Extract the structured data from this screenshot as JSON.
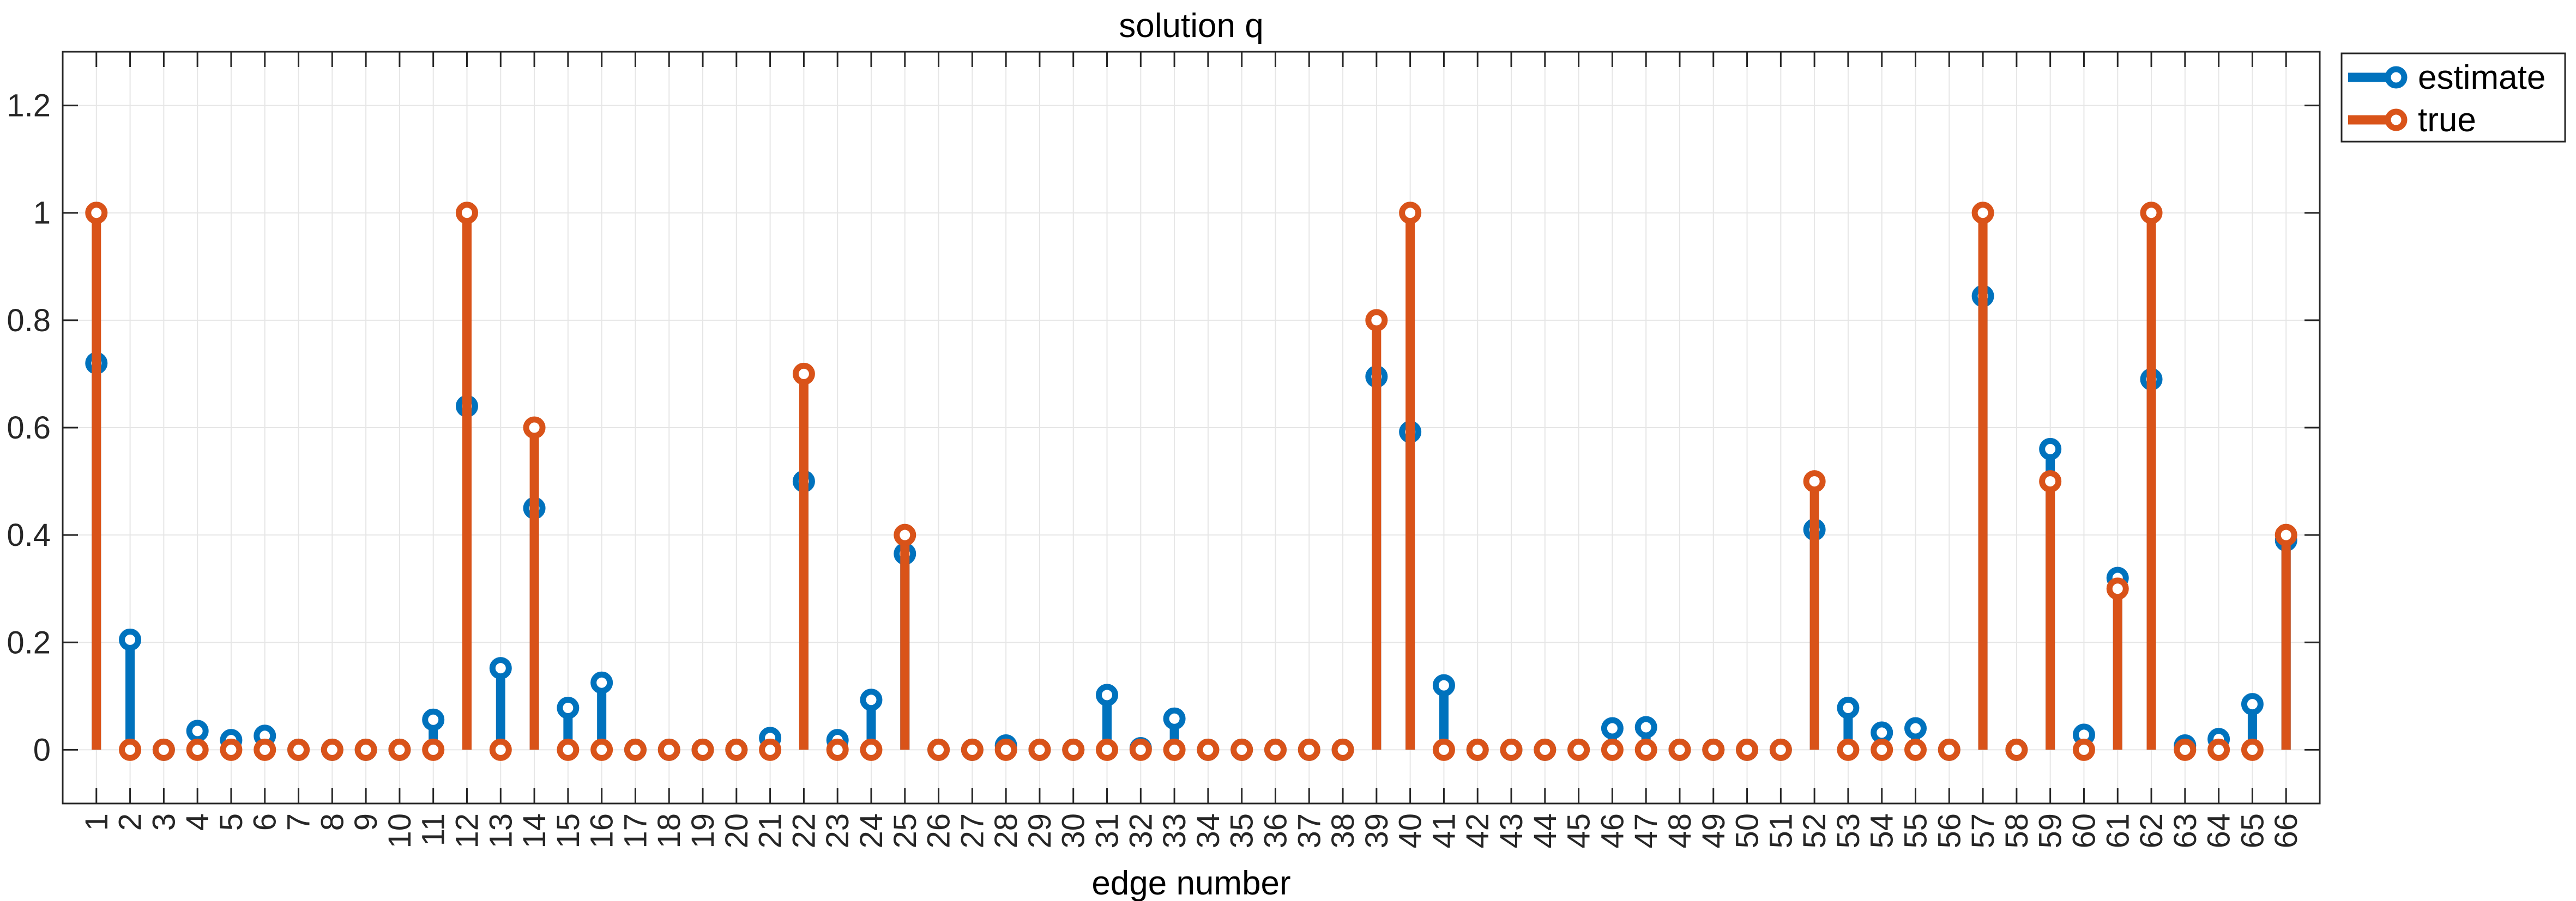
{
  "chart_data": {
    "type": "stem",
    "title": "solution q",
    "xlabel": "edge number",
    "ylabel": "",
    "x": [
      1,
      2,
      3,
      4,
      5,
      6,
      7,
      8,
      9,
      10,
      11,
      12,
      13,
      14,
      15,
      16,
      17,
      18,
      19,
      20,
      21,
      22,
      23,
      24,
      25,
      26,
      27,
      28,
      29,
      30,
      31,
      32,
      33,
      34,
      35,
      36,
      37,
      38,
      39,
      40,
      41,
      42,
      43,
      44,
      45,
      46,
      47,
      48,
      49,
      50,
      51,
      52,
      53,
      54,
      55,
      56,
      57,
      58,
      59,
      60,
      61,
      62,
      63,
      64,
      65,
      66
    ],
    "xlim": [
      0,
      67
    ],
    "ylim": [
      -0.1,
      1.3
    ],
    "yticks": [
      0,
      0.2,
      0.4,
      0.6,
      0.8,
      1,
      1.2
    ],
    "ytick_labels": [
      "0",
      "0.2",
      "0.4",
      "0.6",
      "0.8",
      "1",
      "1.2"
    ],
    "grid": true,
    "legend_position": "outside-top-right",
    "series": [
      {
        "name": "estimate",
        "color": "#0072BD",
        "values": [
          0.72,
          0.205,
          0.0,
          0.035,
          0.018,
          0.026,
          0.0,
          0.0,
          0.0,
          0.0,
          0.056,
          0.64,
          0.152,
          0.45,
          0.078,
          0.125,
          0.0,
          0.0,
          0.0,
          0.0,
          0.022,
          0.5,
          0.018,
          0.093,
          0.365,
          0.0,
          0.0,
          0.008,
          0.0,
          0.0,
          0.102,
          0.003,
          0.058,
          0.0,
          0.0,
          0.0,
          0.0,
          0.0,
          0.695,
          0.592,
          0.12,
          0.0,
          0.0,
          0.0,
          0.0,
          0.04,
          0.042,
          0.0,
          0.0,
          0.0,
          0.0,
          0.41,
          0.078,
          0.032,
          0.04,
          0.0,
          0.845,
          0.0,
          0.56,
          0.028,
          0.32,
          0.69,
          0.008,
          0.02,
          0.085,
          0.39
        ]
      },
      {
        "name": "true",
        "color": "#D95319",
        "values": [
          1.0,
          0.0,
          0.0,
          0.0,
          0.0,
          0.0,
          0.0,
          0.0,
          0.0,
          0.0,
          0.0,
          1.0,
          0.0,
          0.6,
          0.0,
          0.0,
          0.0,
          0.0,
          0.0,
          0.0,
          0.0,
          0.7,
          0.0,
          0.0,
          0.4,
          0.0,
          0.0,
          0.0,
          0.0,
          0.0,
          0.0,
          0.0,
          0.0,
          0.0,
          0.0,
          0.0,
          0.0,
          0.0,
          0.8,
          1.0,
          0.0,
          0.0,
          0.0,
          0.0,
          0.0,
          0.0,
          0.0,
          0.0,
          0.0,
          0.0,
          0.0,
          0.5,
          0.0,
          0.0,
          0.0,
          0.0,
          1.0,
          0.0,
          0.5,
          0.0,
          0.3,
          1.0,
          0.0,
          0.0,
          0.0,
          0.4
        ]
      }
    ]
  }
}
